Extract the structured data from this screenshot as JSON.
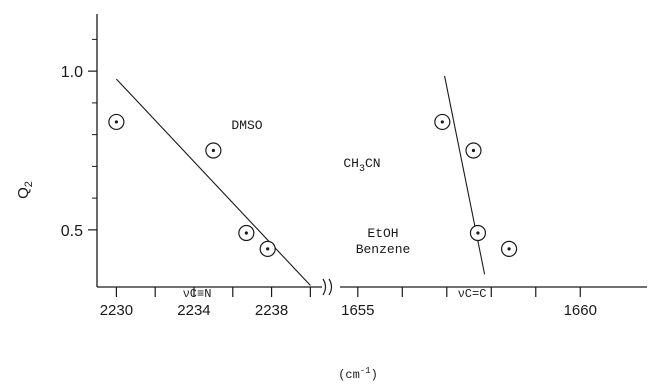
{
  "chart_data": {
    "type": "scatter",
    "ylabel": "Q",
    "ylabel_sub": "2",
    "xlabel_main": "(cm",
    "xlabel_sup": "-1",
    "xlabel_close": ")",
    "y_ticks": [
      {
        "value": 1.0,
        "label": "1.0"
      },
      {
        "value": 0.5,
        "label": "0.5"
      }
    ],
    "ylim": [
      0.32,
      1.18
    ],
    "panels": [
      {
        "name": "nu C=N",
        "region_label": "νC≡N",
        "xlim": [
          2229,
          2240.6
        ],
        "ticks": [
          {
            "value": 2230,
            "label": "2230"
          },
          {
            "value": 2232,
            "label": ""
          },
          {
            "value": 2234,
            "label": "2234"
          },
          {
            "value": 2236,
            "label": ""
          },
          {
            "value": 2238,
            "label": "2238"
          },
          {
            "value": 2240,
            "label": ""
          }
        ],
        "points": [
          {
            "x": 2230.0,
            "y": 0.84
          },
          {
            "x": 2235.0,
            "y": 0.75
          },
          {
            "x": 2236.7,
            "y": 0.49
          },
          {
            "x": 2237.8,
            "y": 0.44
          }
        ],
        "fit_line": [
          [
            2230.0,
            0.975
          ],
          [
            2240.0,
            0.325
          ]
        ]
      },
      {
        "name": "nu C=C",
        "region_label": "νC=C",
        "xlim": [
          1654.6,
          1661.5
        ],
        "ticks": [
          {
            "value": 1655,
            "label": "1655"
          },
          {
            "value": 1656,
            "label": ""
          },
          {
            "value": 1657,
            "label": ""
          },
          {
            "value": 1658,
            "label": ""
          },
          {
            "value": 1659,
            "label": ""
          },
          {
            "value": 1660,
            "label": "1660"
          }
        ],
        "points": [
          {
            "x": 1656.9,
            "y": 0.84
          },
          {
            "x": 1657.6,
            "y": 0.75
          },
          {
            "x": 1657.7,
            "y": 0.49
          },
          {
            "x": 1658.4,
            "y": 0.44
          }
        ],
        "fit_line": [
          [
            1656.95,
            0.985
          ],
          [
            1657.85,
            0.36
          ]
        ]
      }
    ],
    "annotations": [
      {
        "text": "DMSO",
        "y": 0.83
      },
      {
        "text": "CH",
        "sub": "3",
        "tail": "CN",
        "y": 0.71
      },
      {
        "text": "EtOH",
        "y": 0.49
      },
      {
        "text": "Benzene",
        "y": 0.44
      }
    ]
  }
}
